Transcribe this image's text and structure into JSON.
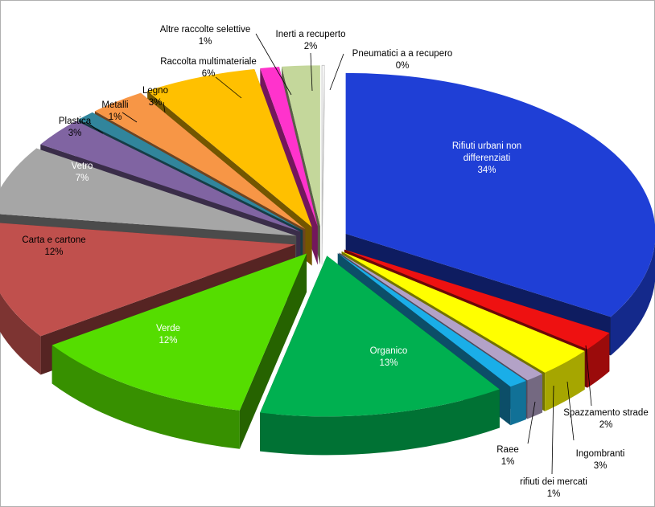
{
  "chart_data": {
    "type": "pie",
    "style": "exploded 3D pie",
    "legend": "none",
    "categories": [
      "Rifiuti urbani non differenziati",
      "Spazzamento strade",
      "Ingombranti",
      "rifiuti dei mercati",
      "Raee",
      "Organico",
      "Verde",
      "Carta e cartone",
      "Vetro",
      "Plastica",
      "Metalli",
      "Legno",
      "Raccolta multimateriale",
      "Altre raccolte selettive",
      "Inerti a recuperto",
      "Pneumatici a a recupero"
    ],
    "values": [
      34,
      2,
      3,
      1,
      1,
      13,
      12,
      12,
      7,
      3,
      1,
      3,
      6,
      1,
      2,
      0
    ],
    "labels": [
      "34%",
      "2%",
      "3%",
      "1%",
      "1%",
      "13%",
      "12%",
      "12%",
      "7%",
      "3%",
      "1%",
      "3%",
      "6%",
      "1%",
      "2%",
      "0%"
    ],
    "colors": [
      "#1f3fd6",
      "#ee1111",
      "#ffff00",
      "#b3a2c7",
      "#1aaee8",
      "#00b050",
      "#55dd00",
      "#c0504d",
      "#a6a6a6",
      "#8064a2",
      "#31859c",
      "#f79646",
      "#ffc000",
      "#ff33cc",
      "#c4d79b",
      "#ffffff"
    ]
  }
}
